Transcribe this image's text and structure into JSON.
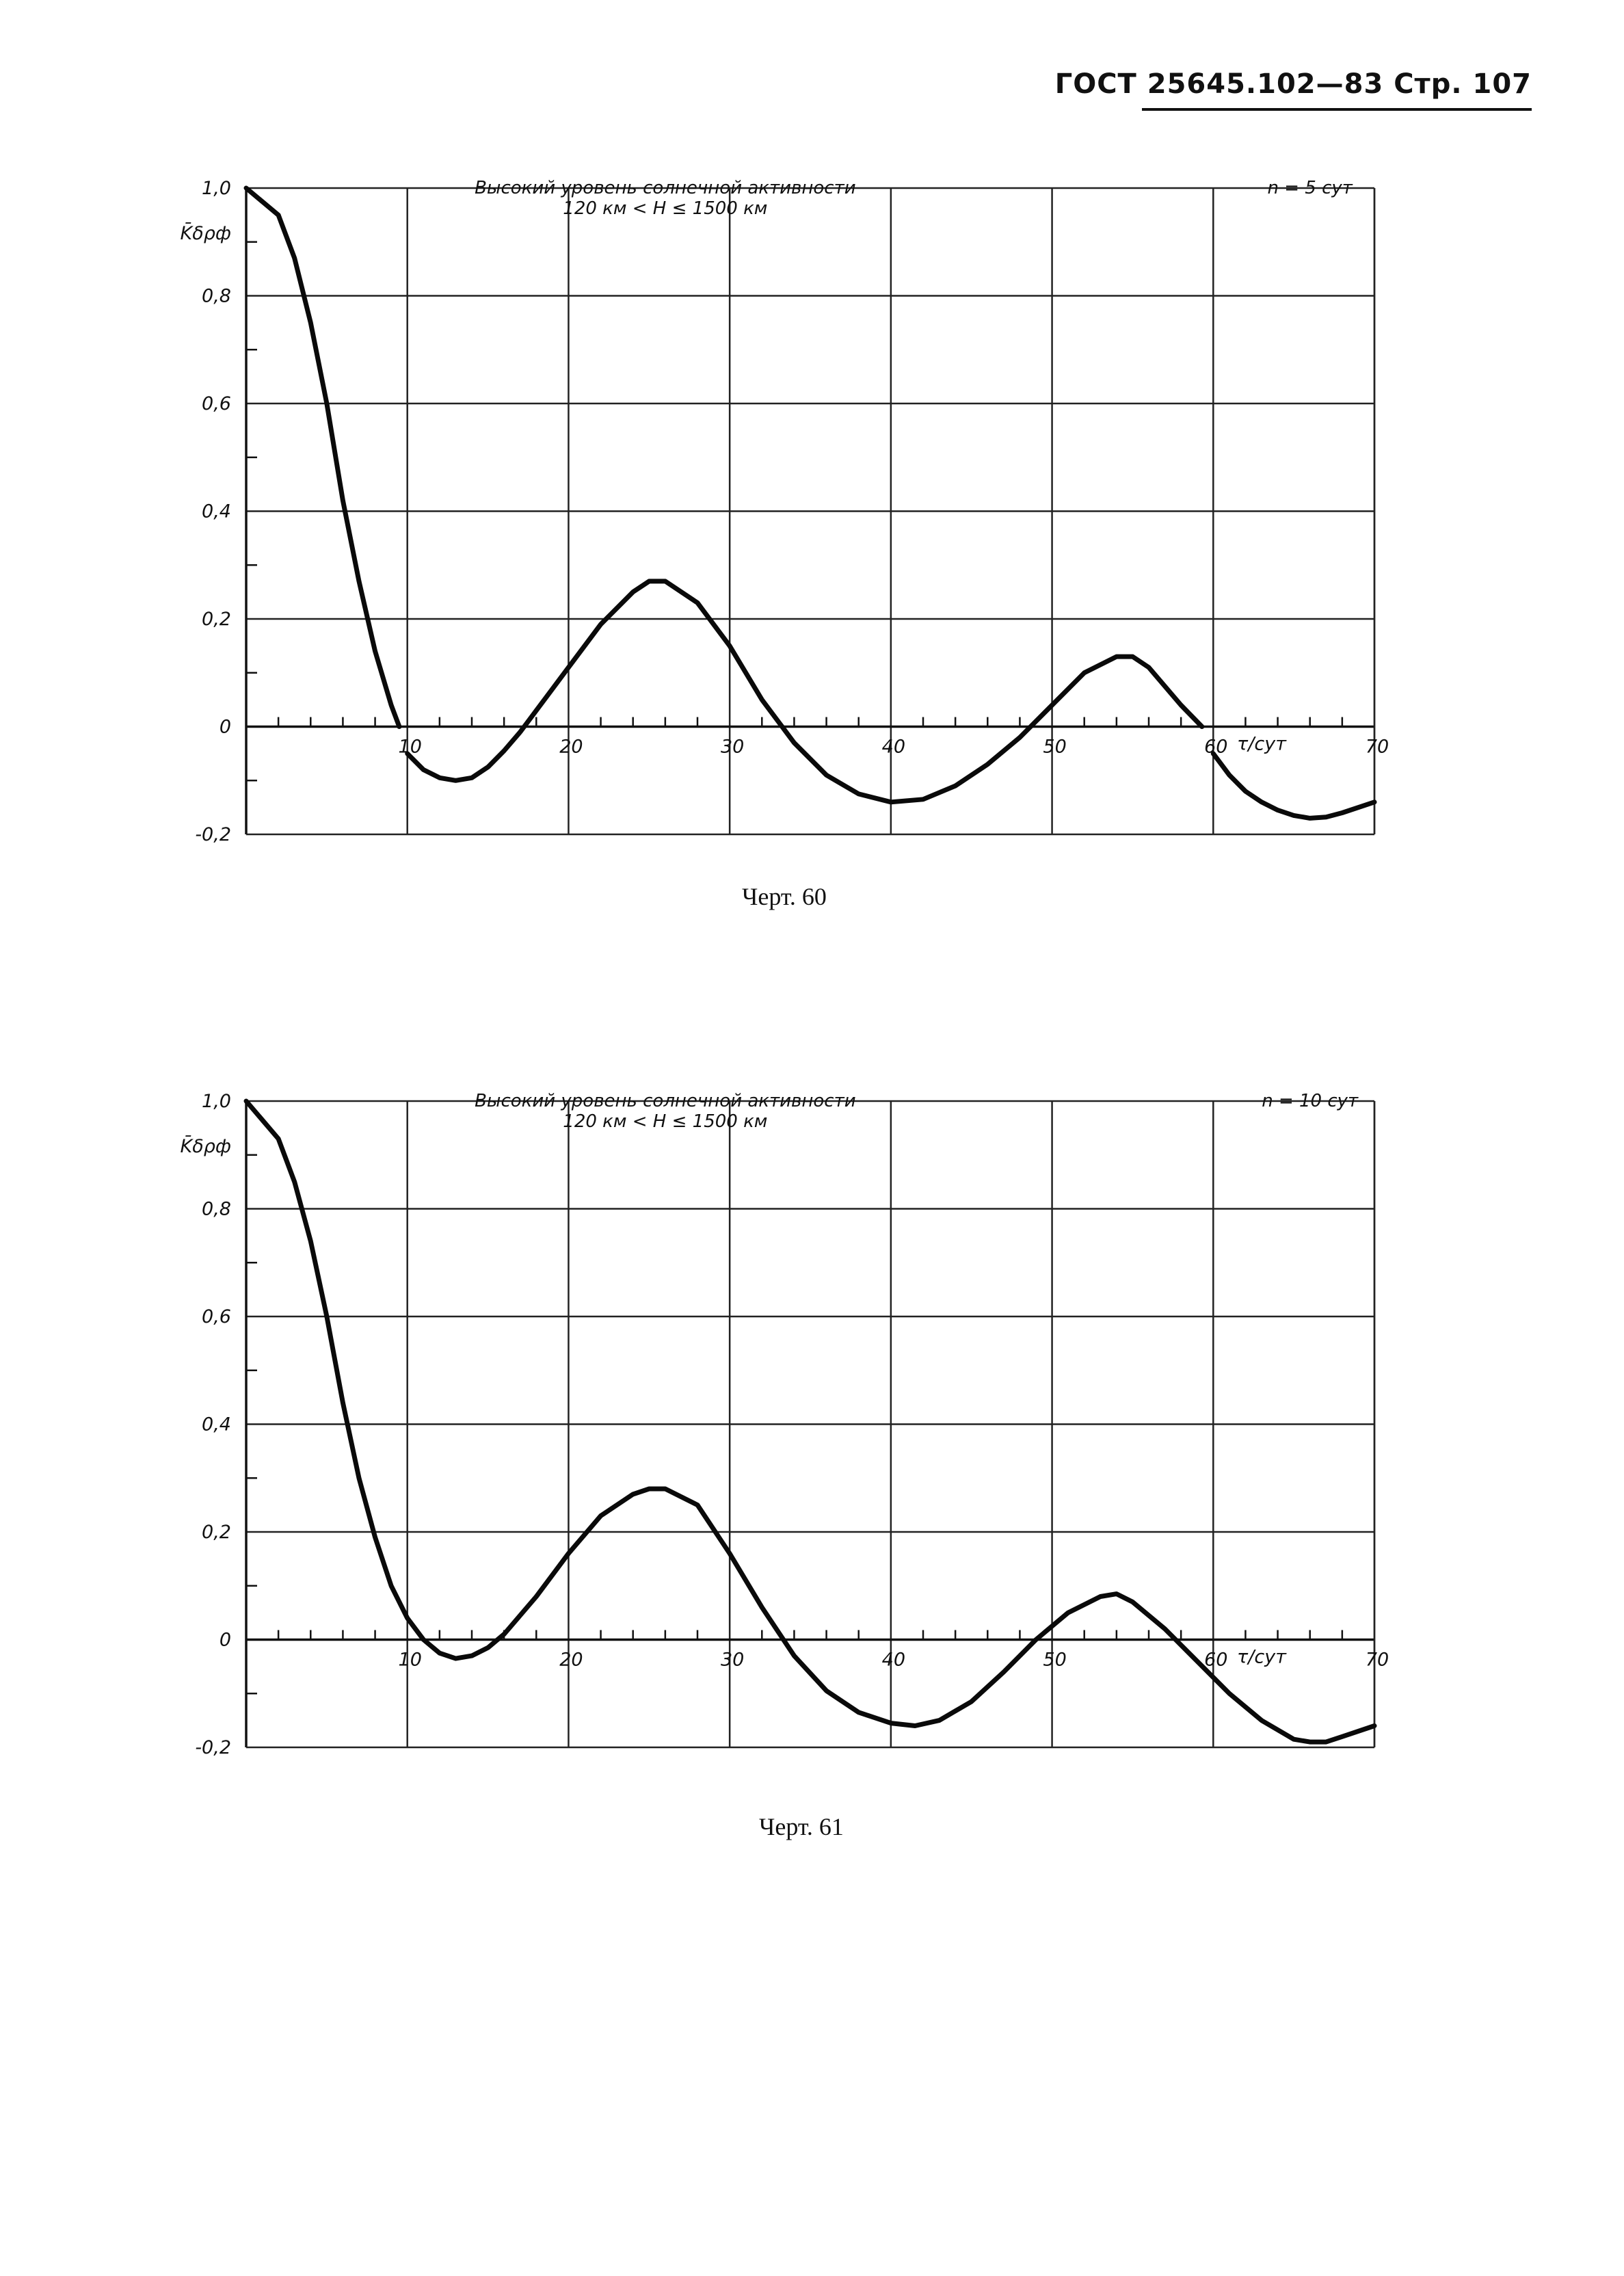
{
  "page_header": "ГОСТ 25645.102—83 Стр. 107",
  "chart_data": [
    {
      "type": "line",
      "caption": "Черт. 60",
      "title": "Высокий уровень солнечной активности",
      "subtitle": "120 км < H ≤ 1500 км",
      "note": "n = 5 сут",
      "ylabel": "K̄δρф",
      "xlabel": "τ/сут",
      "xlim": [
        0,
        70
      ],
      "ylim": [
        -0.2,
        1.0
      ],
      "x_ticks": [
        10,
        20,
        30,
        40,
        50,
        60,
        70
      ],
      "x_tick_labels": [
        "10",
        "20",
        "30",
        "40",
        "50",
        "60",
        "70"
      ],
      "y_ticks": [
        1.0,
        0.8,
        0.6,
        0.4,
        0.2,
        0,
        -0.2
      ],
      "y_tick_labels": [
        "1,0",
        "0,8",
        "0,6",
        "0,4",
        "0,2",
        "0",
        "-0,2"
      ],
      "grid": true,
      "segments": [
        {
          "x": [
            0,
            2,
            3,
            4,
            5,
            6,
            7,
            8,
            9,
            9.5
          ],
          "y": [
            1.0,
            0.95,
            0.87,
            0.75,
            0.6,
            0.42,
            0.27,
            0.14,
            0.04,
            0.0
          ]
        },
        {
          "x": [
            10,
            11,
            12,
            13,
            14,
            15,
            16,
            17,
            18,
            20,
            22,
            24,
            25,
            26,
            28,
            30,
            32,
            34,
            36,
            38,
            40,
            42,
            44,
            46,
            48,
            50,
            52,
            54,
            55,
            56,
            58,
            59.3
          ],
          "y": [
            -0.05,
            -0.08,
            -0.095,
            -0.1,
            -0.095,
            -0.075,
            -0.045,
            -0.01,
            0.03,
            0.11,
            0.19,
            0.25,
            0.27,
            0.27,
            0.23,
            0.15,
            0.05,
            -0.03,
            -0.09,
            -0.125,
            -0.14,
            -0.135,
            -0.11,
            -0.07,
            -0.02,
            0.04,
            0.1,
            0.13,
            0.13,
            0.11,
            0.04,
            0.0
          ]
        },
        {
          "x": [
            60,
            61,
            62,
            63,
            64,
            65,
            66,
            67,
            68,
            70
          ],
          "y": [
            -0.05,
            -0.09,
            -0.12,
            -0.14,
            -0.155,
            -0.165,
            -0.17,
            -0.168,
            -0.16,
            -0.14
          ]
        }
      ]
    },
    {
      "type": "line",
      "caption": "Черт. 61",
      "title": "Высокий уровень солнечной активности",
      "subtitle": "120 км < H ≤ 1500 км",
      "note": "n = 10 сут",
      "ylabel": "K̄δρф",
      "xlabel": "τ/сут",
      "xlim": [
        0,
        70
      ],
      "ylim": [
        -0.2,
        1.0
      ],
      "x_ticks": [
        10,
        20,
        30,
        40,
        50,
        60,
        70
      ],
      "x_tick_labels": [
        "10",
        "20",
        "30",
        "40",
        "50",
        "60",
        "70"
      ],
      "y_ticks": [
        1.0,
        0.8,
        0.6,
        0.4,
        0.2,
        0,
        -0.2
      ],
      "y_tick_labels": [
        "1,0",
        "0,8",
        "0,6",
        "0,4",
        "0,2",
        "0",
        "-0,2"
      ],
      "grid": true,
      "segments": [
        {
          "x": [
            0,
            2,
            3,
            4,
            5,
            6,
            7,
            8,
            9,
            10,
            11,
            12,
            13,
            14,
            15,
            16,
            18,
            20,
            22,
            24,
            25,
            26,
            28,
            30,
            32,
            34,
            36,
            38,
            40,
            41.5,
            43,
            45,
            47,
            49,
            51,
            53,
            54,
            55,
            57,
            59,
            61,
            63,
            65,
            66,
            67,
            68,
            70
          ],
          "y": [
            1.0,
            0.93,
            0.85,
            0.74,
            0.6,
            0.44,
            0.3,
            0.19,
            0.1,
            0.04,
            0.0,
            -0.025,
            -0.035,
            -0.03,
            -0.015,
            0.01,
            0.08,
            0.16,
            0.23,
            0.27,
            0.28,
            0.28,
            0.25,
            0.16,
            0.06,
            -0.03,
            -0.095,
            -0.135,
            -0.155,
            -0.16,
            -0.15,
            -0.115,
            -0.06,
            0.0,
            0.05,
            0.08,
            0.085,
            0.07,
            0.02,
            -0.04,
            -0.1,
            -0.15,
            -0.185,
            -0.19,
            -0.19,
            -0.18,
            -0.16
          ]
        }
      ]
    }
  ]
}
